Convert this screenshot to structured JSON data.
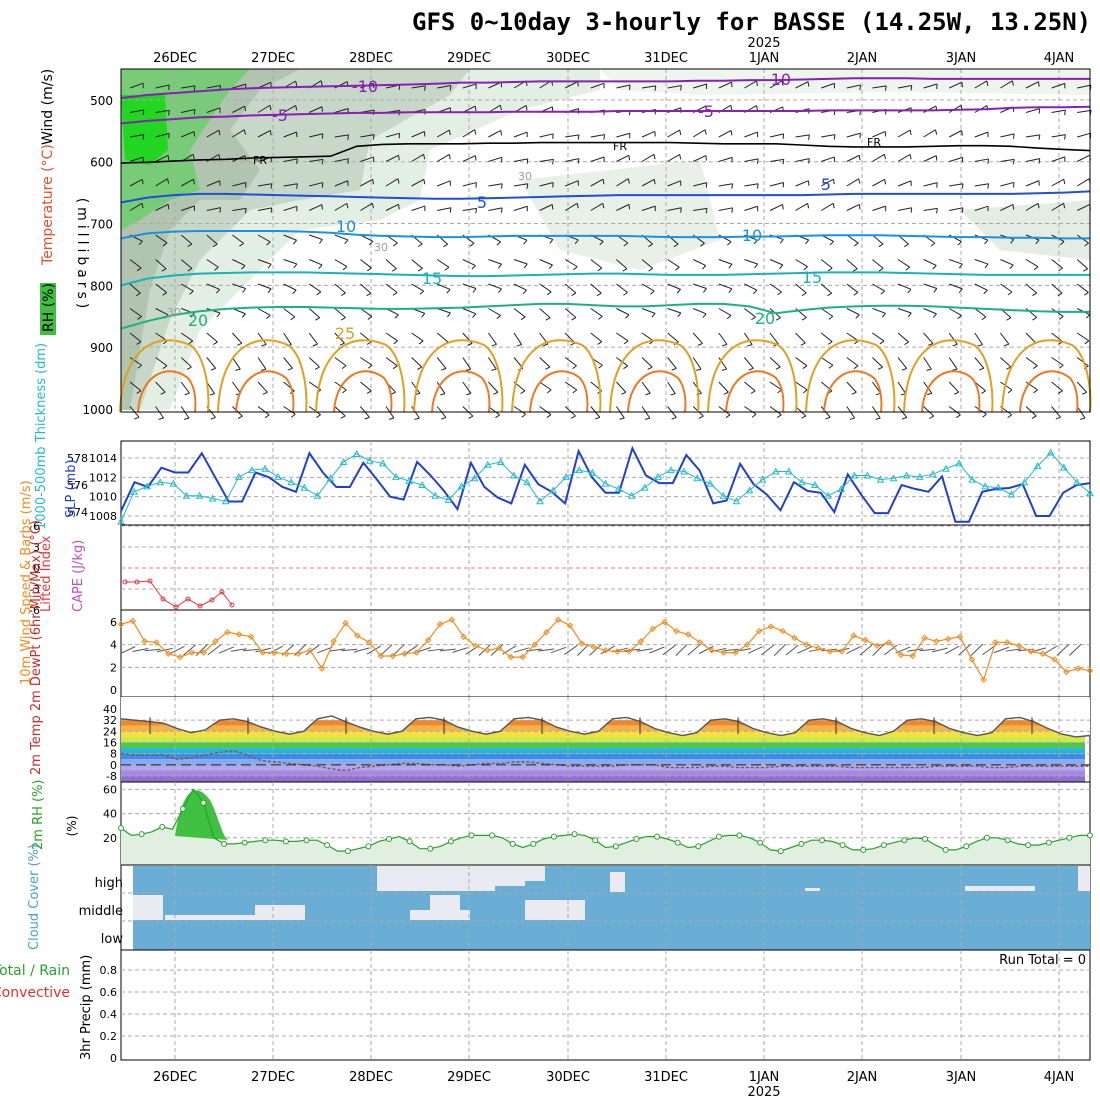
{
  "title": "GFS 0~10day 3-hourly for BASSE (14.25W, 13.25N)",
  "colors": {
    "grid": "#aaaaaa",
    "temp_minus10": "#8a1fb5",
    "temp_fr": "#000000",
    "temp_5": "#1f4fd8",
    "temp_10": "#1e90e0",
    "temp_15": "#18b3b8",
    "temp_20": "#1fae86",
    "temp_25": "#e0a020",
    "temp_30": "#ee7722",
    "rh_green": "#4cc84c",
    "slp": "#1f3fd0",
    "thickness": "#22bbcc",
    "lifted": "#e03a3a",
    "cape": "#c050c0",
    "wind10": "#f08c1e",
    "rh2m": "#2aa02a",
    "cloud": "#6aaed6",
    "rain_label": "#2aa02a",
    "conv_label": "#e03030"
  },
  "chart_data": {
    "type": "meteogram",
    "time_labels": [
      "26DEC",
      "27DEC",
      "28DEC",
      "29DEC",
      "30DEC",
      "31DEC",
      "1JAN",
      "2JAN",
      "3JAN",
      "4JAN"
    ],
    "year_label": "2025",
    "upper_air": {
      "ylabel": "(millibars)",
      "ylabels": [
        "Temperature (°C)",
        "Wind (m/s)",
        "RH (%)"
      ],
      "levels": [
        "500",
        "600",
        "700",
        "800",
        "900",
        "1000"
      ],
      "contour_labels": [
        "-10",
        "-10",
        "-5",
        "-5",
        "FR",
        "FR",
        "FR",
        "5",
        "5",
        "10",
        "10",
        "15",
        "15",
        "20",
        "20",
        "25",
        "30",
        "30",
        "30"
      ],
      "temperature_lines_mb": [
        {
          "name": "-10",
          "values": [
            497,
            492,
            489,
            486,
            483,
            481,
            480,
            479,
            478,
            477,
            476,
            475,
            474,
            472,
            472,
            471,
            470,
            470,
            470,
            470,
            470,
            470,
            469,
            469,
            468,
            468,
            467,
            466,
            465,
            465,
            465,
            466,
            466,
            466,
            466,
            466,
            466,
            466
          ]
        },
        {
          "name": "-5",
          "values": [
            538,
            534,
            531,
            528,
            527,
            525,
            524,
            523,
            522,
            521,
            521,
            520,
            520,
            520,
            520,
            519,
            519,
            519,
            519,
            518,
            518,
            518,
            518,
            518,
            518,
            518,
            518,
            517,
            517,
            517,
            517,
            517,
            516,
            515,
            513,
            512,
            512,
            511
          ]
        },
        {
          "name": "FR",
          "values": [
            602,
            601,
            599,
            597,
            596,
            594,
            593,
            592,
            591,
            575,
            572,
            571,
            571,
            571,
            570,
            570,
            569,
            569,
            569,
            569,
            569,
            569,
            570,
            571,
            571,
            571,
            573,
            575,
            576,
            576,
            576,
            575,
            574,
            574,
            575,
            578,
            580,
            582
          ]
        },
        {
          "name": "5",
          "values": [
            666,
            658,
            654,
            652,
            652,
            653,
            654,
            655,
            656,
            657,
            658,
            659,
            660,
            660,
            659,
            658,
            657,
            656,
            655,
            654,
            654,
            654,
            654,
            654,
            654,
            654,
            654,
            653,
            652,
            652,
            652,
            652,
            652,
            652,
            652,
            651,
            650,
            648
          ]
        },
        {
          "name": "10",
          "values": [
            724,
            716,
            713,
            712,
            712,
            712,
            712,
            713,
            715,
            718,
            720,
            721,
            722,
            722,
            721,
            720,
            720,
            720,
            720,
            720,
            721,
            722,
            722,
            722,
            721,
            721,
            720,
            719,
            719,
            719,
            720,
            721,
            722,
            722,
            723,
            723,
            724,
            724
          ]
        },
        {
          "name": "15",
          "values": [
            800,
            789,
            784,
            781,
            780,
            779,
            779,
            779,
            780,
            781,
            782,
            783,
            784,
            785,
            785,
            784,
            783,
            782,
            781,
            781,
            782,
            783,
            783,
            783,
            782,
            781,
            780,
            779,
            779,
            779,
            780,
            781,
            782,
            783,
            783,
            783,
            783,
            783
          ]
        },
        {
          "name": "20",
          "values": [
            870,
            858,
            848,
            842,
            838,
            836,
            835,
            835,
            836,
            837,
            838,
            838,
            837,
            836,
            834,
            832,
            830,
            830,
            832,
            834,
            834,
            832,
            830,
            830,
            834,
            845,
            840,
            836,
            834,
            833,
            833,
            834,
            836,
            838,
            840,
            842,
            843,
            843
          ]
        }
      ],
      "fr_level_mb": 582,
      "rh_level_mb_note": "RH shading 30/50/70/90%"
    },
    "slp_thickness": {
      "y_left_ticks": [
        "1014",
        "1012",
        "1010",
        "1008"
      ],
      "y_right_ticks": [
        "578",
        "576",
        "574"
      ],
      "ylabel_left": "SLP (mb)",
      "ylabel_right": "1000-500mb Thickness (dm)",
      "slp_mb": [
        1008.5,
        1011.5,
        1011,
        1013,
        1012.5,
        1012.5,
        1014.5,
        1012,
        1009.5,
        1009.5,
        1012.5,
        1012,
        1011,
        1010.5,
        1014.5,
        1012.5,
        1011,
        1011,
        1013.5,
        1011.8,
        1010,
        1009.7,
        1013.6,
        1012.2,
        1010.6,
        1008.7,
        1013.5,
        1011,
        1009.9,
        1009.3,
        1013.3,
        1011.3,
        1010.5,
        1009.3,
        1014.7,
        1012,
        1010.4,
        1010.4,
        1015,
        1012.2,
        1011.4,
        1011.4,
        1014.3,
        1012.7,
        1009.3,
        1009.6,
        1013.4,
        1011.3,
        1010.2,
        1008.6,
        1011.5,
        1010.6,
        1010.4,
        1008.4,
        1012.3,
        1010.2,
        1008.3,
        1008.3,
        1011.2,
        1010.8,
        1010.5,
        1012.1,
        1007.4,
        1007.4,
        1010.5,
        1010.8,
        1010.9,
        1011.3,
        1008,
        1008,
        1010.4,
        1011.2,
        1011.4
      ],
      "thickness_dm": [
        573.3,
        575.5,
        575.9,
        576.2,
        576.1,
        575.2,
        575.2,
        575,
        574.8,
        576.6,
        577.1,
        577.2,
        576.6,
        576.2,
        575.8,
        575.2,
        576.5,
        577.7,
        578.3,
        577.8,
        577.6,
        576.6,
        576.3,
        576,
        575.2,
        574.9,
        575.9,
        576.5,
        577.5,
        577.7,
        576.7,
        576.2,
        574.8,
        575.6,
        576.6,
        577.1,
        576.9,
        576.1,
        575.7,
        575.2,
        575.8,
        576.6,
        577.1,
        577,
        576.5,
        576.1,
        575.2,
        574.8,
        575.6,
        576.4,
        577,
        577,
        576.2,
        576,
        575.2,
        575.7,
        576.7,
        576.7,
        576.4,
        576.5,
        576.7,
        576.6,
        576.8,
        577.2,
        577.6,
        576.4,
        575.9,
        575.8,
        575.3,
        576.2,
        577.4,
        578.4,
        577.3,
        576.2,
        575.4
      ]
    },
    "lifted_cape": {
      "y_ticks": [
        "6",
        "3",
        "0",
        "-3",
        "-6"
      ],
      "ylabel_left": "Lifted Index",
      "ylabel_right": "CAPE (J/kg)",
      "lifted_index": [
        3.2,
        3.3,
        3.2,
        3.1,
        3.3,
        6.4,
        7.5,
        6.3,
        6.4,
        4.5,
        5.3,
        6.6
      ]
    },
    "wind10m": {
      "y_ticks": [
        "6",
        "4",
        "2",
        "0"
      ],
      "ylabel": "10m Wind Speed & Barbs (m/s)",
      "speed_ms": [
        5.8,
        6.1,
        4.3,
        4.2,
        3.2,
        2.9,
        3.3,
        3.3,
        4.3,
        5.1,
        4.9,
        4.7,
        3.3,
        3.3,
        3.2,
        3.2,
        3.5,
        1.9,
        4.3,
        5.9,
        4.8,
        4.2,
        3.0,
        3.0,
        3.2,
        3.3,
        4.4,
        5.8,
        6.2,
        4.7,
        3.9,
        3.5,
        3.7,
        2.9,
        2.9,
        4.0,
        5.1,
        6.2,
        5.7,
        4.1,
        3.8,
        3.5,
        3.4,
        3.4,
        4.3,
        5.4,
        6.0,
        5.2,
        4.9,
        4.2,
        3.5,
        3.3,
        3.3,
        4.0,
        5.2,
        5.6,
        5.2,
        4.6,
        4.0,
        3.7,
        3.4,
        3.4,
        4.8,
        4.4,
        3.9,
        4.2,
        3.1,
        3.0,
        4.6,
        4.3,
        4.5,
        4.7,
        2.7,
        0.9,
        4.2,
        4.2,
        3.9,
        3.4,
        3.2,
        2.7,
        1.6,
        1.9,
        1.7
      ]
    },
    "temp2m": {
      "y_ticks": [
        "40",
        "32",
        "24",
        "16",
        "8",
        "0",
        "-8"
      ],
      "ylabel": "2m Temp 2m DewPt (6hr Min/Max) (°C)",
      "temp_c": [
        33,
        32,
        31,
        30,
        26,
        23,
        25,
        32,
        33,
        31,
        27,
        24,
        22,
        24,
        33,
        35,
        31,
        27,
        24,
        22,
        24,
        33,
        34,
        32,
        27,
        24,
        22,
        24,
        33,
        34,
        32,
        27,
        24,
        22,
        24,
        33,
        34,
        31,
        26,
        23,
        21,
        23,
        32,
        33,
        31,
        26,
        23,
        21,
        23,
        32,
        33,
        31,
        26,
        23,
        21,
        24,
        32,
        33,
        31,
        26,
        23,
        21,
        23,
        33,
        34,
        31,
        26,
        22,
        20,
        21
      ],
      "dewpt_c": [
        8,
        7,
        7,
        7,
        4,
        5,
        7,
        9,
        10,
        7,
        3,
        2,
        1,
        0,
        -1,
        -3,
        -4,
        -2,
        -1,
        0,
        1,
        1,
        0,
        0,
        -1,
        0,
        1,
        1,
        2,
        2,
        1,
        0,
        -1,
        -1,
        -1,
        -1,
        0,
        0,
        0,
        -2,
        -2,
        -2,
        -1,
        -1,
        -2,
        -2,
        -2,
        -1,
        -1,
        -1,
        -1,
        -1,
        -2,
        -2,
        -2,
        -2,
        -2,
        -2,
        -1,
        -1,
        -1,
        -1,
        -2,
        -2,
        -1,
        -1,
        -1,
        -1,
        -1,
        -1
      ]
    },
    "rh2m": {
      "y_ticks": [
        "60",
        "40",
        "20"
      ],
      "ylabel": "2m RH (%)",
      "values": [
        28,
        22,
        23,
        25,
        29,
        27,
        44,
        60,
        49,
        20,
        15,
        15,
        16,
        17,
        18,
        18,
        17,
        17,
        18,
        18,
        14,
        9,
        9,
        11,
        13,
        17,
        19,
        21,
        17,
        11,
        11,
        13,
        17,
        20,
        22,
        22,
        22,
        20,
        15,
        12,
        15,
        19,
        21,
        22,
        23,
        22,
        18,
        12,
        13,
        16,
        19,
        21,
        21,
        19,
        16,
        12,
        13,
        17,
        21,
        22,
        22,
        20,
        16,
        10,
        9,
        12,
        15,
        18,
        18,
        17,
        14,
        10,
        10,
        11,
        14,
        16,
        18,
        20,
        19,
        14,
        10,
        10,
        13,
        17,
        20,
        20,
        18,
        15,
        14,
        14,
        16,
        18,
        20,
        22,
        22
      ]
    },
    "cloud_cover": {
      "ylabel": "Cloud Cover (%)",
      "layers": [
        "high",
        "middle",
        "low"
      ]
    },
    "precip": {
      "y_ticks": [
        "0.8",
        "0.6",
        "0.4",
        "0.2",
        "0"
      ],
      "ylabel": "3hr Precip (mm)",
      "legend_total": "Total / Rain",
      "legend_conv": "Convective",
      "run_total": "Run Total = 0",
      "values": [
        0,
        0,
        0,
        0,
        0,
        0,
        0,
        0,
        0,
        0
      ]
    }
  }
}
